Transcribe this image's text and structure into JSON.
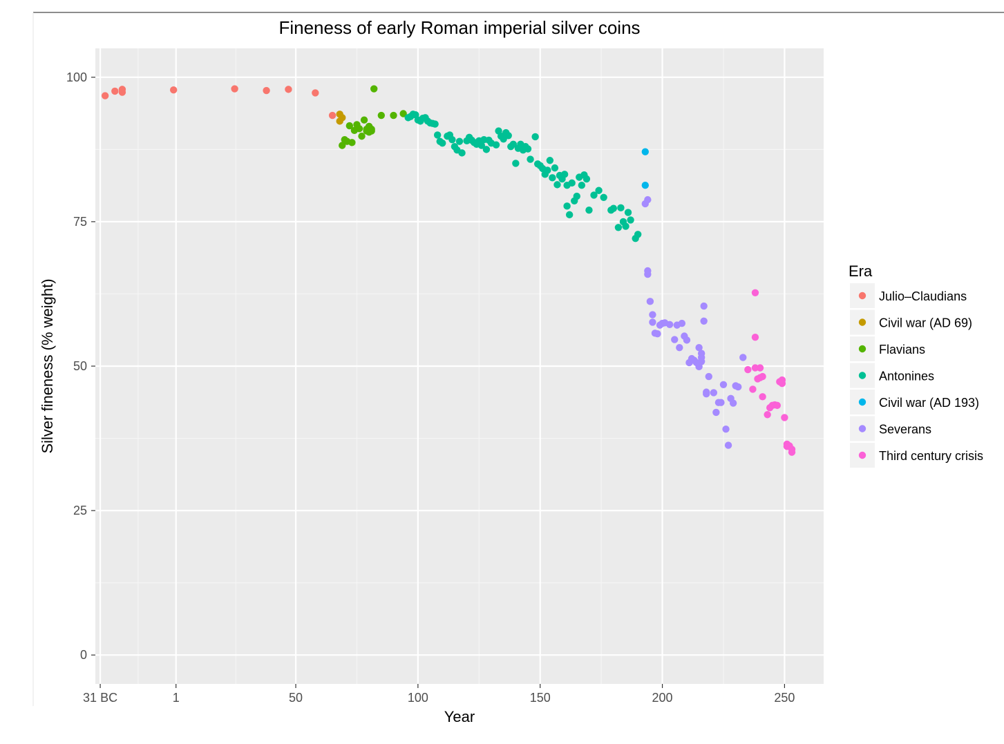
{
  "chart_data": {
    "type": "scatter",
    "title": "Fineness of early Roman imperial silver coins",
    "xlabel": "Year",
    "ylabel": "Silver fineness (% weight)",
    "xlim": [
      -32,
      266
    ],
    "ylim": [
      -5,
      105
    ],
    "x_ticks": [
      {
        "value": -30,
        "label": "31 BC"
      },
      {
        "value": 1,
        "label": "1"
      },
      {
        "value": 50,
        "label": "50"
      },
      {
        "value": 100,
        "label": "100"
      },
      {
        "value": 150,
        "label": "150"
      },
      {
        "value": 200,
        "label": "200"
      },
      {
        "value": 250,
        "label": "250"
      }
    ],
    "y_ticks": [
      {
        "value": 0,
        "label": "0"
      },
      {
        "value": 25,
        "label": "25"
      },
      {
        "value": 50,
        "label": "50"
      },
      {
        "value": 75,
        "label": "75"
      },
      {
        "value": 100,
        "label": "100"
      }
    ],
    "grid": true,
    "legend_title": "Era",
    "legend_position": "right",
    "series": [
      {
        "name": "Julio–Claudians",
        "color": "#F8766D",
        "x": [
          -28,
          -24,
          -21,
          -21,
          0,
          25,
          38,
          47,
          58,
          65
        ],
        "y": [
          96.8,
          97.6,
          97.9,
          97.4,
          97.8,
          98.0,
          97.7,
          97.9,
          97.3,
          93.4
        ]
      },
      {
        "name": "Civil war (AD 69)",
        "color": "#C49A00",
        "x": [
          68,
          68,
          69
        ],
        "y": [
          92.4,
          93.6,
          93.0
        ]
      },
      {
        "name": "Flavians",
        "color": "#53B400",
        "x": [
          69,
          70,
          71,
          72,
          73,
          74,
          75,
          76,
          77,
          78,
          79,
          79,
          80,
          80,
          81,
          81,
          82,
          85,
          90,
          94
        ],
        "y": [
          88.2,
          89.2,
          88.9,
          91.6,
          88.7,
          90.8,
          91.8,
          91.1,
          89.8,
          92.6,
          91.0,
          90.7,
          91.5,
          90.5,
          91.0,
          90.7,
          98.0,
          93.4,
          93.4,
          93.7
        ]
      },
      {
        "name": "Antonines",
        "color": "#00C094",
        "x": [
          96,
          97,
          98,
          99,
          100,
          101,
          102,
          103,
          104,
          105,
          106,
          107,
          108,
          109,
          110,
          112,
          113,
          114,
          115,
          116,
          117,
          118,
          120,
          121,
          122,
          123,
          124,
          125,
          126,
          127,
          128,
          129,
          130,
          132,
          133,
          134,
          135,
          136,
          137,
          138,
          139,
          140,
          141,
          142,
          143,
          144,
          145,
          146,
          148,
          149,
          150,
          151,
          152,
          153,
          154,
          155,
          156,
          157,
          158,
          159,
          160,
          161,
          161,
          162,
          163,
          164,
          165,
          166,
          167,
          168,
          169,
          170,
          172,
          174,
          176,
          179,
          180,
          182,
          183,
          184,
          185,
          186,
          187,
          189,
          190
        ],
        "y": [
          93.0,
          93.2,
          93.6,
          93.5,
          92.6,
          92.4,
          92.9,
          93.0,
          92.4,
          92.1,
          92.0,
          91.9,
          90.0,
          88.9,
          88.6,
          89.8,
          90.0,
          89.2,
          88.0,
          87.4,
          88.9,
          86.9,
          89.0,
          89.6,
          89.1,
          88.7,
          88.4,
          89.0,
          88.2,
          89.2,
          87.5,
          89.1,
          88.6,
          88.3,
          90.7,
          89.8,
          89.3,
          90.4,
          89.9,
          88.0,
          88.4,
          85.1,
          87.7,
          88.4,
          87.4,
          88.0,
          87.6,
          85.8,
          89.7,
          85.0,
          84.7,
          84.2,
          83.2,
          83.9,
          85.6,
          82.6,
          84.3,
          81.4,
          83.0,
          82.4,
          83.2,
          77.7,
          81.3,
          76.2,
          81.7,
          78.6,
          79.4,
          82.7,
          81.3,
          83.1,
          82.4,
          77.0,
          79.6,
          80.4,
          79.2,
          77.0,
          77.3,
          74.0,
          77.4,
          75.0,
          74.2,
          76.6,
          75.3,
          72.1,
          72.8
        ]
      },
      {
        "name": "Civil war (AD 193)",
        "color": "#00B6EB",
        "x": [
          193,
          193
        ],
        "y": [
          87.1,
          81.3
        ]
      },
      {
        "name": "Severans",
        "color": "#A58AFF",
        "x": [
          193,
          194,
          194,
          194,
          195,
          196,
          196,
          197,
          198,
          199,
          200,
          201,
          203,
          205,
          206,
          207,
          208,
          209,
          210,
          211,
          212,
          213,
          214,
          215,
          215,
          216,
          216,
          216,
          217,
          217,
          218,
          218,
          219,
          221,
          222,
          223,
          224,
          225,
          226,
          227,
          228,
          229,
          230,
          231,
          233
        ],
        "y": [
          78.1,
          78.8,
          66.5,
          65.9,
          61.2,
          57.6,
          58.9,
          55.7,
          55.6,
          57.1,
          57.4,
          57.5,
          57.2,
          54.6,
          57.1,
          53.2,
          57.4,
          55.2,
          54.5,
          50.6,
          51.3,
          51.0,
          50.6,
          49.9,
          53.2,
          52.2,
          51.5,
          50.8,
          60.4,
          57.8,
          45.5,
          45.2,
          48.2,
          45.4,
          42.0,
          43.7,
          43.7,
          46.8,
          39.1,
          36.3,
          44.4,
          43.6,
          46.6,
          46.4,
          51.5
        ]
      },
      {
        "name": "Third century crisis",
        "color": "#FB61D7",
        "x": [
          235,
          237,
          238,
          238,
          238,
          239,
          240,
          240,
          241,
          241,
          243,
          244,
          245,
          246,
          247,
          248,
          249,
          249,
          250,
          251,
          251,
          252,
          253,
          253
        ],
        "y": [
          49.4,
          46.0,
          62.7,
          55.0,
          49.7,
          47.8,
          49.7,
          48.0,
          48.2,
          44.7,
          41.6,
          42.8,
          43.2,
          43.3,
          43.2,
          47.3,
          47.6,
          47.0,
          41.1,
          36.5,
          36.1,
          36.2,
          35.6,
          35.1
        ]
      }
    ]
  }
}
